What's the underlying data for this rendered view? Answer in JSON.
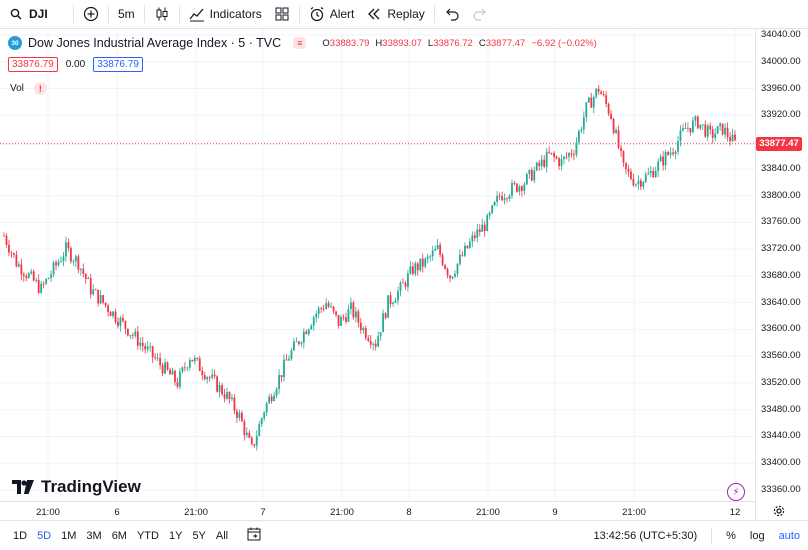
{
  "toolbar": {
    "symbol": "DJI",
    "interval": "5m",
    "indicators": "Indicators",
    "alert": "Alert",
    "replay": "Replay"
  },
  "legend": {
    "badge": "30",
    "title": "Dow Jones Industrial Average Index · 5 · TVC",
    "o_label": "O",
    "o": "33883.79",
    "h_label": "H",
    "h": "33893.07",
    "l_label": "L",
    "l": "33876.72",
    "c_label": "C",
    "c": "33877.47",
    "change": "−6.92 (−0.02%)",
    "bid": "33876.79",
    "spread": "0.00",
    "ask": "33876.79",
    "vol": "Vol"
  },
  "price_scale": {
    "ticks": [
      "34040.00",
      "34000.00",
      "33960.00",
      "33920.00",
      "33880.00",
      "33840.00",
      "33800.00",
      "33760.00",
      "33720.00",
      "33680.00",
      "33640.00",
      "33600.00",
      "33560.00",
      "33520.00",
      "33480.00",
      "33440.00",
      "33400.00",
      "33360.00"
    ],
    "last_price": "33877.47"
  },
  "time_axis": {
    "labels": [
      "21:00",
      "6",
      "21:00",
      "7",
      "21:00",
      "8",
      "21:00",
      "9",
      "21:00",
      "12"
    ]
  },
  "brand": "TradingView",
  "bottom": {
    "ranges": [
      "1D",
      "5D",
      "1M",
      "3M",
      "6M",
      "YTD",
      "1Y",
      "5Y",
      "All"
    ],
    "active_range": "5D",
    "clock": "13:42:56 (UTC+5:30)",
    "percent": "%",
    "log": "log",
    "auto": "auto"
  },
  "colors": {
    "up": "#22ab94",
    "down": "#f23645",
    "accent": "#2962ff"
  },
  "chart_data": {
    "type": "candlestick",
    "ylim": [
      33360,
      34040
    ],
    "x": [
      "5 21:00",
      "6",
      "6 21:00",
      "7",
      "7 21:00",
      "8",
      "8 21:00",
      "9",
      "9 21:00",
      "12"
    ],
    "close_path": [
      33740,
      33700,
      33680,
      33660,
      33690,
      33720,
      33700,
      33660,
      33640,
      33620,
      33600,
      33580,
      33560,
      33540,
      33520,
      33560,
      33540,
      33520,
      33500,
      33470,
      33420,
      33480,
      33520,
      33560,
      33590,
      33620,
      33640,
      33610,
      33630,
      33600,
      33580,
      33640,
      33660,
      33690,
      33700,
      33720,
      33680,
      33710,
      33740,
      33760,
      33800,
      33810,
      33820,
      33840,
      33860,
      33850,
      33870,
      33930,
      33960,
      33920,
      33840,
      33820,
      33830,
      33850,
      33870,
      33900,
      33910,
      33890,
      33900,
      33877.47
    ]
  }
}
